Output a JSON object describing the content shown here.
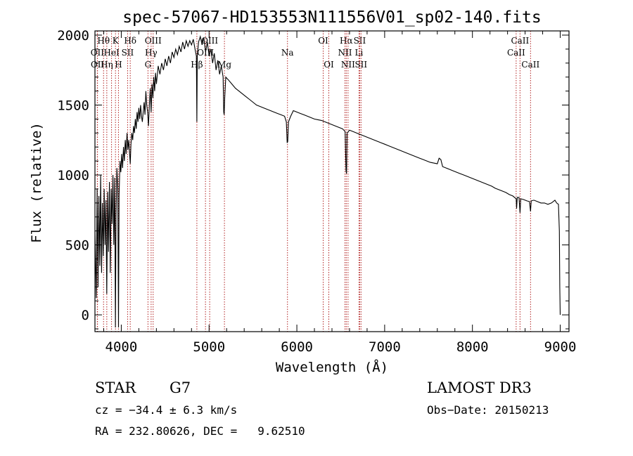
{
  "chart_data": {
    "type": "line",
    "title": "spec-57067-HD153553N111556V01_sp02-140.fits",
    "xlabel": "Wavelength (Å)",
    "ylabel": "Flux (relative)",
    "xlim": [
      3700,
      9100
    ],
    "ylim": [
      -120,
      2030
    ],
    "x_ticks": [
      4000,
      5000,
      6000,
      7000,
      8000,
      9000
    ],
    "y_ticks": [
      0,
      500,
      1000,
      1500,
      2000
    ],
    "grid": false,
    "series": [
      {
        "points": [
          [
            3700,
            600
          ],
          [
            3715,
            120
          ],
          [
            3725,
            900
          ],
          [
            3735,
            200
          ],
          [
            3745,
            850
          ],
          [
            3755,
            350
          ],
          [
            3765,
            1000
          ],
          [
            3775,
            300
          ],
          [
            3785,
            800
          ],
          [
            3795,
            420
          ],
          [
            3805,
            900
          ],
          [
            3815,
            500
          ],
          [
            3825,
            820
          ],
          [
            3835,
            150
          ],
          [
            3845,
            880
          ],
          [
            3855,
            450
          ],
          [
            3865,
            950
          ],
          [
            3875,
            300
          ],
          [
            3885,
            900
          ],
          [
            3895,
            650
          ],
          [
            3905,
            1000
          ],
          [
            3915,
            500
          ],
          [
            3925,
            980
          ],
          [
            3933,
            -90
          ],
          [
            3940,
            700
          ],
          [
            3950,
            1050
          ],
          [
            3960,
            900
          ],
          [
            3968,
            -90
          ],
          [
            3975,
            850
          ],
          [
            3985,
            1100
          ],
          [
            3995,
            1020
          ],
          [
            4005,
            1150
          ],
          [
            4015,
            1050
          ],
          [
            4025,
            1200
          ],
          [
            4035,
            1100
          ],
          [
            4045,
            1250
          ],
          [
            4055,
            1150
          ],
          [
            4065,
            1300
          ],
          [
            4075,
            1180
          ],
          [
            4085,
            1250
          ],
          [
            4095,
            1150
          ],
          [
            4102,
            1080
          ],
          [
            4110,
            1220
          ],
          [
            4120,
            1300
          ],
          [
            4130,
            1250
          ],
          [
            4140,
            1350
          ],
          [
            4150,
            1300
          ],
          [
            4160,
            1400
          ],
          [
            4170,
            1330
          ],
          [
            4180,
            1450
          ],
          [
            4190,
            1380
          ],
          [
            4200,
            1480
          ],
          [
            4210,
            1400
          ],
          [
            4220,
            1500
          ],
          [
            4230,
            1420
          ],
          [
            4240,
            1380
          ],
          [
            4250,
            1450
          ],
          [
            4260,
            1520
          ],
          [
            4270,
            1430
          ],
          [
            4280,
            1600
          ],
          [
            4290,
            1500
          ],
          [
            4300,
            1450
          ],
          [
            4310,
            1350
          ],
          [
            4320,
            1500
          ],
          [
            4330,
            1620
          ],
          [
            4340,
            1450
          ],
          [
            4350,
            1650
          ],
          [
            4360,
            1550
          ],
          [
            4370,
            1700
          ],
          [
            4380,
            1600
          ],
          [
            4390,
            1730
          ],
          [
            4400,
            1650
          ],
          [
            4420,
            1780
          ],
          [
            4440,
            1720
          ],
          [
            4460,
            1800
          ],
          [
            4480,
            1750
          ],
          [
            4500,
            1830
          ],
          [
            4520,
            1780
          ],
          [
            4540,
            1850
          ],
          [
            4560,
            1800
          ],
          [
            4580,
            1880
          ],
          [
            4600,
            1840
          ],
          [
            4620,
            1900
          ],
          [
            4640,
            1860
          ],
          [
            4660,
            1920
          ],
          [
            4680,
            1880
          ],
          [
            4700,
            1950
          ],
          [
            4720,
            1900
          ],
          [
            4740,
            1960
          ],
          [
            4760,
            1920
          ],
          [
            4780,
            1960
          ],
          [
            4800,
            1930
          ],
          [
            4820,
            1970
          ],
          [
            4840,
            1900
          ],
          [
            4855,
            1850
          ],
          [
            4861,
            1380
          ],
          [
            4866,
            1850
          ],
          [
            4880,
            1950
          ],
          [
            4900,
            1990
          ],
          [
            4920,
            1930
          ],
          [
            4940,
            1980
          ],
          [
            4960,
            1880
          ],
          [
            4980,
            1950
          ],
          [
            5000,
            1850
          ],
          [
            5020,
            1900
          ],
          [
            5040,
            1800
          ],
          [
            5060,
            1870
          ],
          [
            5080,
            1750
          ],
          [
            5100,
            1820
          ],
          [
            5120,
            1720
          ],
          [
            5140,
            1780
          ],
          [
            5160,
            1700
          ],
          [
            5167,
            1450
          ],
          [
            5172,
            1430
          ],
          [
            5178,
            1550
          ],
          [
            5190,
            1700
          ],
          [
            5220,
            1680
          ],
          [
            5260,
            1650
          ],
          [
            5300,
            1620
          ],
          [
            5340,
            1600
          ],
          [
            5380,
            1580
          ],
          [
            5420,
            1560
          ],
          [
            5460,
            1540
          ],
          [
            5500,
            1520
          ],
          [
            5540,
            1500
          ],
          [
            5580,
            1490
          ],
          [
            5620,
            1480
          ],
          [
            5660,
            1470
          ],
          [
            5700,
            1460
          ],
          [
            5740,
            1450
          ],
          [
            5780,
            1440
          ],
          [
            5820,
            1430
          ],
          [
            5860,
            1420
          ],
          [
            5880,
            1380
          ],
          [
            5890,
            1230
          ],
          [
            5896,
            1240
          ],
          [
            5905,
            1380
          ],
          [
            5930,
            1420
          ],
          [
            5960,
            1460
          ],
          [
            6000,
            1450
          ],
          [
            6040,
            1440
          ],
          [
            6080,
            1430
          ],
          [
            6120,
            1420
          ],
          [
            6160,
            1410
          ],
          [
            6200,
            1400
          ],
          [
            6240,
            1395
          ],
          [
            6280,
            1390
          ],
          [
            6320,
            1380
          ],
          [
            6360,
            1370
          ],
          [
            6400,
            1360
          ],
          [
            6440,
            1350
          ],
          [
            6480,
            1340
          ],
          [
            6520,
            1330
          ],
          [
            6550,
            1310
          ],
          [
            6560,
            1030
          ],
          [
            6566,
            1010
          ],
          [
            6572,
            1300
          ],
          [
            6600,
            1320
          ],
          [
            6640,
            1310
          ],
          [
            6680,
            1300
          ],
          [
            6720,
            1290
          ],
          [
            6760,
            1280
          ],
          [
            6800,
            1270
          ],
          [
            6840,
            1260
          ],
          [
            6880,
            1250
          ],
          [
            6920,
            1240
          ],
          [
            6960,
            1230
          ],
          [
            7000,
            1220
          ],
          [
            7040,
            1210
          ],
          [
            7080,
            1200
          ],
          [
            7120,
            1190
          ],
          [
            7160,
            1180
          ],
          [
            7200,
            1170
          ],
          [
            7240,
            1160
          ],
          [
            7280,
            1150
          ],
          [
            7320,
            1140
          ],
          [
            7360,
            1130
          ],
          [
            7400,
            1120
          ],
          [
            7440,
            1110
          ],
          [
            7480,
            1100
          ],
          [
            7520,
            1090
          ],
          [
            7560,
            1085
          ],
          [
            7600,
            1080
          ],
          [
            7620,
            1120
          ],
          [
            7640,
            1110
          ],
          [
            7660,
            1060
          ],
          [
            7700,
            1050
          ],
          [
            7740,
            1040
          ],
          [
            7780,
            1030
          ],
          [
            7820,
            1020
          ],
          [
            7860,
            1010
          ],
          [
            7900,
            1000
          ],
          [
            7940,
            990
          ],
          [
            7980,
            980
          ],
          [
            8020,
            970
          ],
          [
            8060,
            960
          ],
          [
            8100,
            950
          ],
          [
            8140,
            940
          ],
          [
            8180,
            930
          ],
          [
            8220,
            920
          ],
          [
            8260,
            905
          ],
          [
            8300,
            895
          ],
          [
            8340,
            885
          ],
          [
            8380,
            875
          ],
          [
            8420,
            860
          ],
          [
            8460,
            850
          ],
          [
            8498,
            830
          ],
          [
            8503,
            760
          ],
          [
            8510,
            840
          ],
          [
            8530,
            840
          ],
          [
            8542,
            730
          ],
          [
            8550,
            830
          ],
          [
            8580,
            825
          ],
          [
            8600,
            820
          ],
          [
            8620,
            815
          ],
          [
            8650,
            810
          ],
          [
            8662,
            740
          ],
          [
            8670,
            815
          ],
          [
            8700,
            820
          ],
          [
            8740,
            810
          ],
          [
            8780,
            800
          ],
          [
            8820,
            800
          ],
          [
            8860,
            790
          ],
          [
            8900,
            800
          ],
          [
            8940,
            820
          ],
          [
            8960,
            800
          ],
          [
            8980,
            790
          ],
          [
            8990,
            600
          ],
          [
            8995,
            200
          ],
          [
            9000,
            0
          ]
        ]
      }
    ],
    "spectral_lines": [
      {
        "label": "Hθ",
        "wavelength": 3798,
        "row": 1
      },
      {
        "label": "OII",
        "wavelength": 3727,
        "row": 2
      },
      {
        "label": "OII",
        "wavelength": 3729,
        "row": 3
      },
      {
        "label": "K",
        "wavelength": 3934,
        "row": 1
      },
      {
        "label": "HeI",
        "wavelength": 3889,
        "row": 2
      },
      {
        "label": "Hη",
        "wavelength": 3835,
        "row": 3
      },
      {
        "label": "Hδ",
        "wavelength": 4102,
        "row": 1
      },
      {
        "label": "SII",
        "wavelength": 4072,
        "row": 2
      },
      {
        "label": "H",
        "wavelength": 3968,
        "row": 3
      },
      {
        "label": "OIII",
        "wavelength": 4363,
        "row": 1
      },
      {
        "label": "Hγ",
        "wavelength": 4340,
        "row": 2
      },
      {
        "label": "G",
        "wavelength": 4304,
        "row": 3
      },
      {
        "label": "OIII",
        "wavelength": 5007,
        "row": 1
      },
      {
        "label": "OIII",
        "wavelength": 4959,
        "row": 2
      },
      {
        "label": "Hβ",
        "wavelength": 4861,
        "row": 3
      },
      {
        "label": "Mg",
        "wavelength": 5175,
        "row": 3
      },
      {
        "label": "Na",
        "wavelength": 5893,
        "row": 2
      },
      {
        "label": "OI",
        "wavelength": 6300,
        "row": 1
      },
      {
        "label": "OI",
        "wavelength": 6364,
        "row": 3
      },
      {
        "label": "Hα",
        "wavelength": 6563,
        "row": 1
      },
      {
        "label": "NII",
        "wavelength": 6548,
        "row": 2
      },
      {
        "label": "NII",
        "wavelength": 6583,
        "row": 3
      },
      {
        "label": "SII",
        "wavelength": 6716,
        "row": 1
      },
      {
        "label": "Li",
        "wavelength": 6708,
        "row": 2
      },
      {
        "label": "SII",
        "wavelength": 6731,
        "row": 3
      },
      {
        "label": "CaII",
        "wavelength": 8542,
        "row": 1
      },
      {
        "label": "CaII",
        "wavelength": 8498,
        "row": 2
      },
      {
        "label": "CaII",
        "wavelength": 8662,
        "row": 3
      }
    ]
  },
  "info": {
    "object_class": "STAR",
    "subclass": "G7",
    "survey": "LAMOST DR3",
    "velocity": "cz = −34.4 ± 6.3 km/s",
    "obs_date": "Obs−Date: 20150213",
    "coordinates": "RA = 232.80626, DEC =   9.62510"
  }
}
